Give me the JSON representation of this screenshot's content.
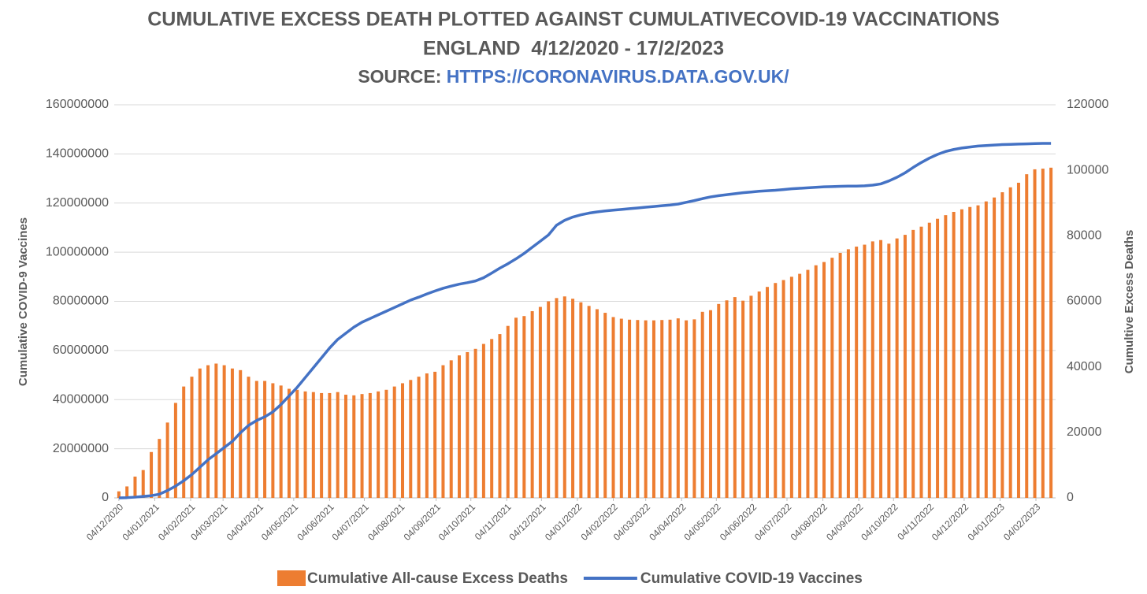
{
  "chart_data": {
    "type": "combo",
    "title": [
      "CUMULATIVE EXCESS DEATH PLOTTED AGAINST CUMULATIVECOVID-19 VACCINATIONS",
      "ENGLAND  4/12/2020 - 17/2/2023"
    ],
    "source_label": "SOURCE:",
    "source_url": "HTTPS://CORONAVIRUS.DATA.GOV.UK/",
    "y_label": "Cumulative COVID-9 Vaccines",
    "y2_label": "Cumultive Excess Deaths",
    "x": [
      "2020-12-04",
      "2020-12-11",
      "2020-12-18",
      "2020-12-25",
      "2021-01-01",
      "2021-01-08",
      "2021-01-15",
      "2021-01-22",
      "2021-01-29",
      "2021-02-05",
      "2021-02-12",
      "2021-02-19",
      "2021-02-26",
      "2021-03-05",
      "2021-03-12",
      "2021-03-19",
      "2021-03-26",
      "2021-04-02",
      "2021-04-09",
      "2021-04-16",
      "2021-04-23",
      "2021-04-30",
      "2021-05-07",
      "2021-05-14",
      "2021-05-21",
      "2021-05-28",
      "2021-06-04",
      "2021-06-11",
      "2021-06-18",
      "2021-06-25",
      "2021-07-02",
      "2021-07-09",
      "2021-07-16",
      "2021-07-23",
      "2021-07-30",
      "2021-08-06",
      "2021-08-13",
      "2021-08-20",
      "2021-08-27",
      "2021-09-03",
      "2021-09-10",
      "2021-09-17",
      "2021-09-24",
      "2021-10-01",
      "2021-10-08",
      "2021-10-15",
      "2021-10-22",
      "2021-10-29",
      "2021-11-05",
      "2021-11-12",
      "2021-11-19",
      "2021-11-26",
      "2021-12-03",
      "2021-12-10",
      "2021-12-17",
      "2021-12-24",
      "2021-12-31",
      "2022-01-07",
      "2022-01-14",
      "2022-01-21",
      "2022-01-28",
      "2022-02-04",
      "2022-02-11",
      "2022-02-18",
      "2022-02-25",
      "2022-03-04",
      "2022-03-11",
      "2022-03-18",
      "2022-03-25",
      "2022-04-01",
      "2022-04-08",
      "2022-04-15",
      "2022-04-22",
      "2022-04-29",
      "2022-05-06",
      "2022-05-13",
      "2022-05-20",
      "2022-05-27",
      "2022-06-03",
      "2022-06-10",
      "2022-06-17",
      "2022-06-24",
      "2022-07-01",
      "2022-07-08",
      "2022-07-15",
      "2022-07-22",
      "2022-07-29",
      "2022-08-05",
      "2022-08-12",
      "2022-08-19",
      "2022-08-26",
      "2022-09-02",
      "2022-09-09",
      "2022-09-16",
      "2022-09-23",
      "2022-09-30",
      "2022-10-07",
      "2022-10-14",
      "2022-10-21",
      "2022-10-28",
      "2022-11-04",
      "2022-11-11",
      "2022-11-18",
      "2022-11-25",
      "2022-12-02",
      "2022-12-09",
      "2022-12-16",
      "2022-12-23",
      "2022-12-30",
      "2023-01-06",
      "2023-01-13",
      "2023-01-20",
      "2023-01-27",
      "2023-02-03",
      "2023-02-10",
      "2023-02-17"
    ],
    "series": [
      {
        "name": "Cumulative All-cause Excess Deaths",
        "type": "bar",
        "axis": "y2",
        "color": "#ED7D31",
        "values": [
          2000,
          3500,
          6500,
          8500,
          14000,
          18000,
          23000,
          29000,
          34000,
          37000,
          39500,
          40500,
          41000,
          40500,
          39500,
          39000,
          37000,
          35700,
          35700,
          35000,
          34300,
          33300,
          33000,
          32500,
          32300,
          32000,
          32000,
          32300,
          31500,
          31300,
          31700,
          32000,
          32500,
          33000,
          34000,
          35000,
          36000,
          37000,
          38000,
          38500,
          40500,
          42000,
          43500,
          44500,
          45500,
          47000,
          48500,
          50000,
          52500,
          55000,
          55500,
          57000,
          58300,
          60000,
          61000,
          61500,
          60800,
          59700,
          58600,
          57600,
          56500,
          55200,
          54700,
          54400,
          54300,
          54200,
          54200,
          54300,
          54400,
          54800,
          54200,
          54500,
          56800,
          57300,
          59200,
          60300,
          61300,
          60200,
          61700,
          63000,
          64400,
          65600,
          66500,
          67500,
          68400,
          69600,
          71000,
          72000,
          73300,
          74800,
          75900,
          76700,
          77300,
          78300,
          78700,
          77600,
          79200,
          80300,
          81800,
          82800,
          84000,
          85200,
          86300,
          87300,
          88100,
          88800,
          89300,
          90500,
          91700,
          93300,
          94800,
          96200,
          98800,
          100300,
          100500,
          100800
        ]
      },
      {
        "name": "Cumulative COVID-19 Vaccines",
        "type": "line",
        "axis": "y",
        "color": "#4472C4",
        "values": [
          0,
          100000,
          300000,
          600000,
          900000,
          1500000,
          3000000,
          4800000,
          7000000,
          9500000,
          12500000,
          15500000,
          18000000,
          20500000,
          23000000,
          26500000,
          29500000,
          31500000,
          33000000,
          35000000,
          38000000,
          41500000,
          45000000,
          49000000,
          53000000,
          57000000,
          61000000,
          64500000,
          67000000,
          69500000,
          71500000,
          73000000,
          74500000,
          76000000,
          77500000,
          79000000,
          80500000,
          81700000,
          83000000,
          84200000,
          85300000,
          86200000,
          87000000,
          87600000,
          88300000,
          89600000,
          91500000,
          93500000,
          95300000,
          97300000,
          99500000,
          102000000,
          104500000,
          107000000,
          111000000,
          113000000,
          114300000,
          115200000,
          115900000,
          116400000,
          116800000,
          117100000,
          117400000,
          117700000,
          118000000,
          118300000,
          118600000,
          118900000,
          119200000,
          119600000,
          120300000,
          121000000,
          121800000,
          122500000,
          123000000,
          123400000,
          123800000,
          124200000,
          124500000,
          124800000,
          125000000,
          125200000,
          125500000,
          125800000,
          126000000,
          126200000,
          126400000,
          126600000,
          126700000,
          126800000,
          126900000,
          126900000,
          127000000,
          127300000,
          127800000,
          129000000,
          130500000,
          132300000,
          134500000,
          136500000,
          138300000,
          139800000,
          141000000,
          141800000,
          142400000,
          142800000,
          143200000,
          143400000,
          143600000,
          143800000,
          143900000,
          144000000,
          144100000,
          144200000,
          144300000,
          144300000
        ]
      }
    ],
    "xlim": [
      "2020-11-30",
      "2023-02-21"
    ],
    "xticks": [
      {
        "value": "2020-12-04",
        "label": "04/12/2020"
      },
      {
        "value": "2021-01-04",
        "label": "04/01/2021"
      },
      {
        "value": "2021-02-04",
        "label": "04/02/2021"
      },
      {
        "value": "2021-03-04",
        "label": "04/03/2021"
      },
      {
        "value": "2021-04-04",
        "label": "04/04/2021"
      },
      {
        "value": "2021-05-04",
        "label": "04/05/2021"
      },
      {
        "value": "2021-06-04",
        "label": "04/06/2021"
      },
      {
        "value": "2021-07-04",
        "label": "04/07/2021"
      },
      {
        "value": "2021-08-04",
        "label": "04/08/2021"
      },
      {
        "value": "2021-09-04",
        "label": "04/09/2021"
      },
      {
        "value": "2021-10-04",
        "label": "04/10/2021"
      },
      {
        "value": "2021-11-04",
        "label": "04/11/2021"
      },
      {
        "value": "2021-12-04",
        "label": "04/12/2021"
      },
      {
        "value": "2022-01-04",
        "label": "04/01/2022"
      },
      {
        "value": "2022-02-04",
        "label": "04/02/2022"
      },
      {
        "value": "2022-03-04",
        "label": "04/03/2022"
      },
      {
        "value": "2022-04-04",
        "label": "04/04/2022"
      },
      {
        "value": "2022-05-04",
        "label": "04/05/2022"
      },
      {
        "value": "2022-06-04",
        "label": "04/06/2022"
      },
      {
        "value": "2022-07-04",
        "label": "04/07/2022"
      },
      {
        "value": "2022-08-04",
        "label": "04/08/2022"
      },
      {
        "value": "2022-09-04",
        "label": "04/09/2022"
      },
      {
        "value": "2022-10-04",
        "label": "04/10/2022"
      },
      {
        "value": "2022-11-04",
        "label": "04/11/2022"
      },
      {
        "value": "2022-12-04",
        "label": "04/12/2022"
      },
      {
        "value": "2023-01-04",
        "label": "04/01/2023"
      },
      {
        "value": "2023-02-04",
        "label": "04/02/2023"
      }
    ],
    "ylim": [
      0,
      160000000
    ],
    "yticks": [
      0,
      20000000,
      40000000,
      60000000,
      80000000,
      100000000,
      120000000,
      140000000,
      160000000
    ],
    "y2lim": [
      0,
      120000
    ],
    "y2ticks": [
      0,
      20000,
      40000,
      60000,
      80000,
      100000,
      120000
    ],
    "grid": true,
    "legend": "bottom"
  }
}
